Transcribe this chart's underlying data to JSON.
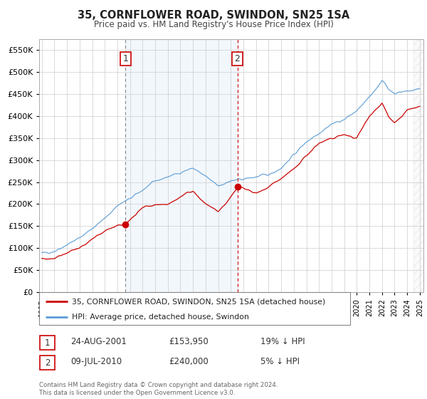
{
  "title": "35, CORNFLOWER ROAD, SWINDON, SN25 1SA",
  "subtitle": "Price paid vs. HM Land Registry's House Price Index (HPI)",
  "legend_line1": "35, CORNFLOWER ROAD, SWINDON, SN25 1SA (detached house)",
  "legend_line2": "HPI: Average price, detached house, Swindon",
  "transaction1_date": "24-AUG-2001",
  "transaction1_price": "£153,950",
  "transaction1_hpi": "19% ↓ HPI",
  "transaction1_year": 2001.65,
  "transaction1_value": 153950,
  "transaction2_date": "09-JUL-2010",
  "transaction2_price": "£240,000",
  "transaction2_hpi": "5% ↓ HPI",
  "transaction2_year": 2010.52,
  "transaction2_value": 240000,
  "footer": "Contains HM Land Registry data © Crown copyright and database right 2024.\nThis data is licensed under the Open Government Licence v3.0.",
  "hpi_color": "#5b9bd5",
  "price_color": "#cc0000",
  "vline1_color": "#888888",
  "vline2_color": "#cc0000",
  "shade_color": "#ddeeff",
  "background_color": "#ffffff",
  "grid_color": "#cccccc",
  "ylim": [
    0,
    575000
  ],
  "yticks": [
    0,
    50000,
    100000,
    150000,
    200000,
    250000,
    300000,
    350000,
    400000,
    450000,
    500000,
    550000
  ],
  "xmin": 1994.8,
  "xmax": 2025.3
}
